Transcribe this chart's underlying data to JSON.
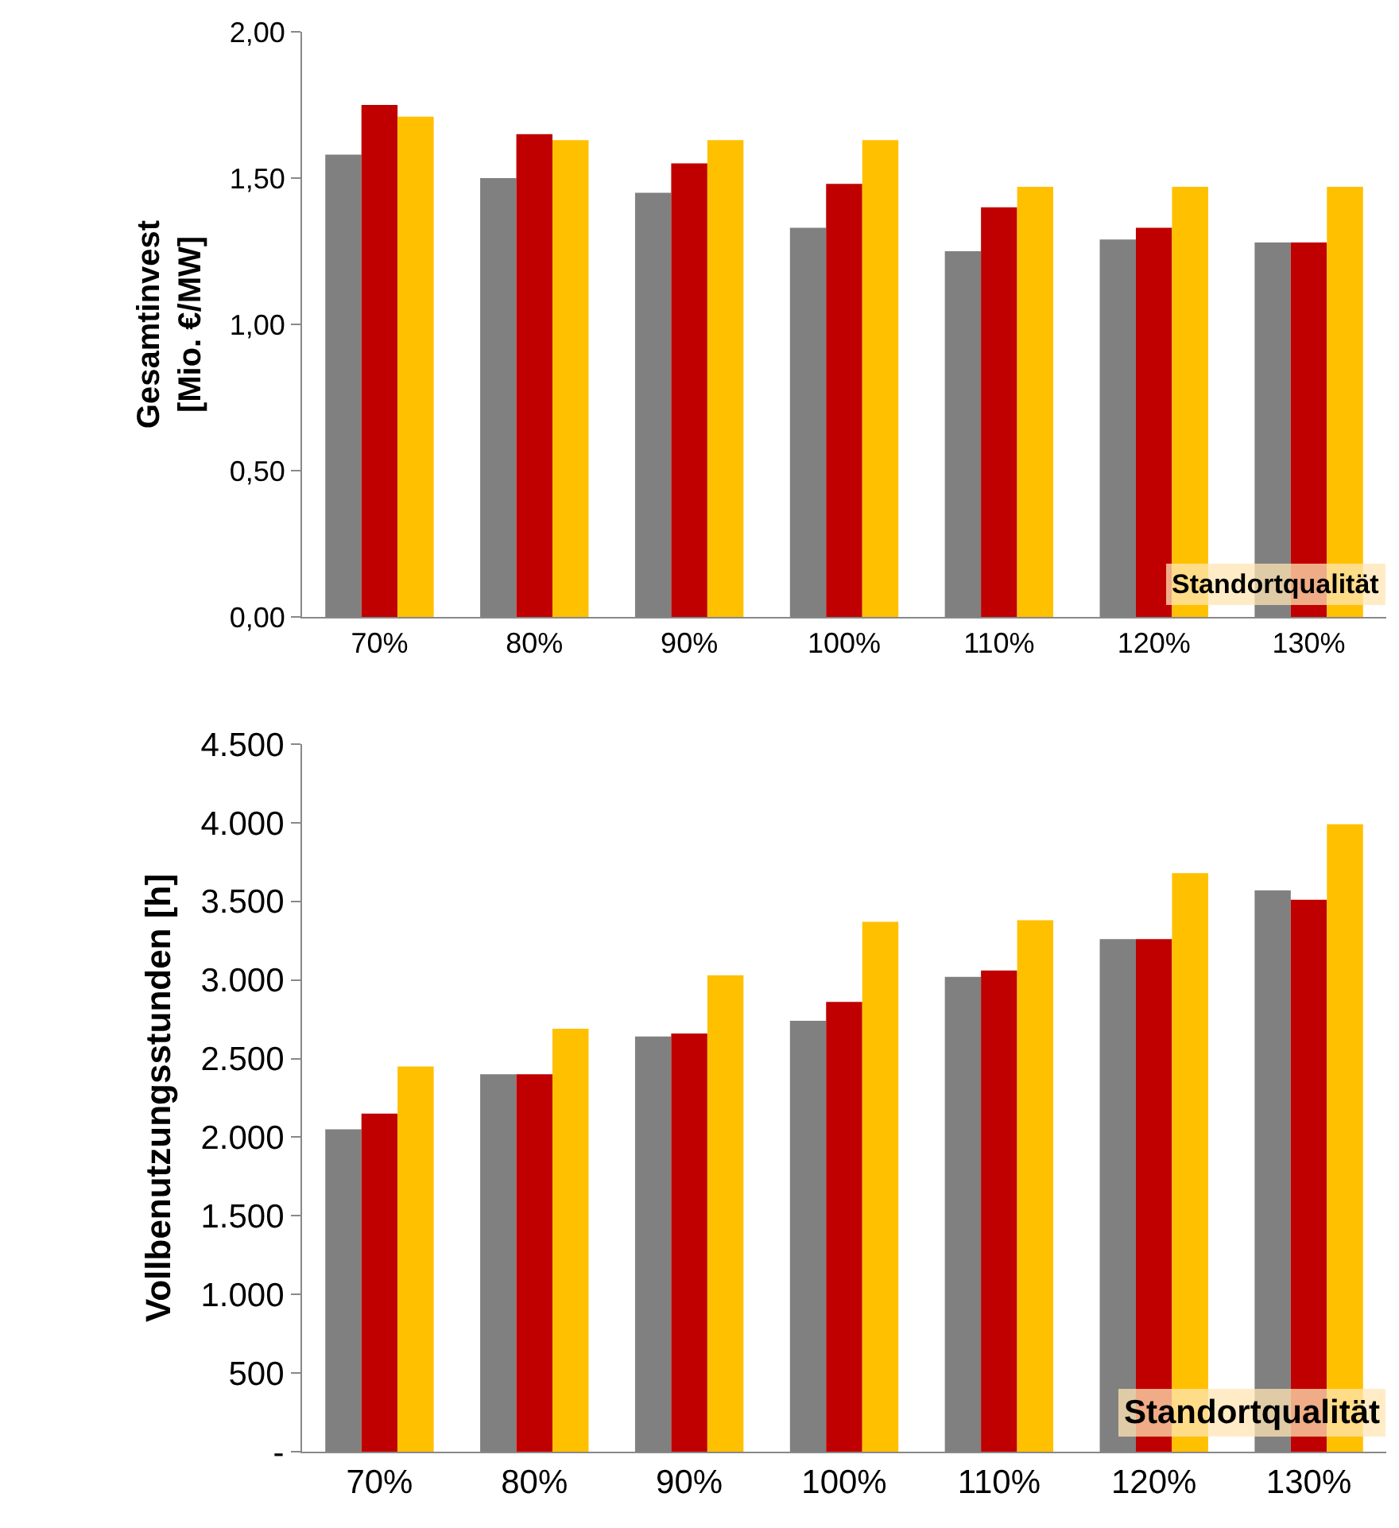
{
  "chart_data": [
    {
      "type": "bar",
      "ylabel": "Gesamtinvest\n[Mio. €/MW]",
      "categories": [
        "70%",
        "80%",
        "90%",
        "100%",
        "110%",
        "120%",
        "130%"
      ],
      "series": [
        {
          "color": "#808080",
          "values": [
            1.58,
            1.5,
            1.45,
            1.33,
            1.25,
            1.29,
            1.28
          ]
        },
        {
          "color": "#c00000",
          "values": [
            1.75,
            1.65,
            1.55,
            1.48,
            1.4,
            1.33,
            1.28
          ]
        },
        {
          "color": "#ffc000",
          "values": [
            1.71,
            1.63,
            1.63,
            1.63,
            1.47,
            1.47,
            1.47
          ]
        }
      ],
      "ylim": [
        0,
        2
      ],
      "yticks": [
        {
          "value": 0,
          "label": "0,00"
        },
        {
          "value": 0.5,
          "label": "0,50"
        },
        {
          "value": 1,
          "label": "1,00"
        },
        {
          "value": 1.5,
          "label": "1,50"
        },
        {
          "value": 2,
          "label": "2,00"
        }
      ],
      "grid": false,
      "annotations": [
        "Standortqualität"
      ]
    },
    {
      "type": "bar",
      "ylabel": "Vollbenutzungsstunden [h]",
      "categories": [
        "70%",
        "80%",
        "90%",
        "100%",
        "110%",
        "120%",
        "130%"
      ],
      "series": [
        {
          "color": "#808080",
          "values": [
            2050,
            2400,
            2640,
            2740,
            3020,
            3260,
            3570
          ]
        },
        {
          "color": "#c00000",
          "values": [
            2150,
            2400,
            2660,
            2860,
            3060,
            3260,
            3510
          ]
        },
        {
          "color": "#ffc000",
          "values": [
            2450,
            2690,
            3030,
            3370,
            3380,
            3680,
            3990
          ]
        }
      ],
      "ylim": [
        0,
        4500
      ],
      "yticks": [
        {
          "value": 0,
          "label": "-"
        },
        {
          "value": 500,
          "label": "500"
        },
        {
          "value": 1000,
          "label": "1.000"
        },
        {
          "value": 1500,
          "label": "1.500"
        },
        {
          "value": 2000,
          "label": "2.000"
        },
        {
          "value": 2500,
          "label": "2.500"
        },
        {
          "value": 3000,
          "label": "3.000"
        },
        {
          "value": 3500,
          "label": "3.500"
        },
        {
          "value": 4000,
          "label": "4.000"
        },
        {
          "value": 4500,
          "label": "4.500"
        }
      ],
      "grid": false,
      "annotations": [
        "Standortqualität"
      ]
    }
  ]
}
